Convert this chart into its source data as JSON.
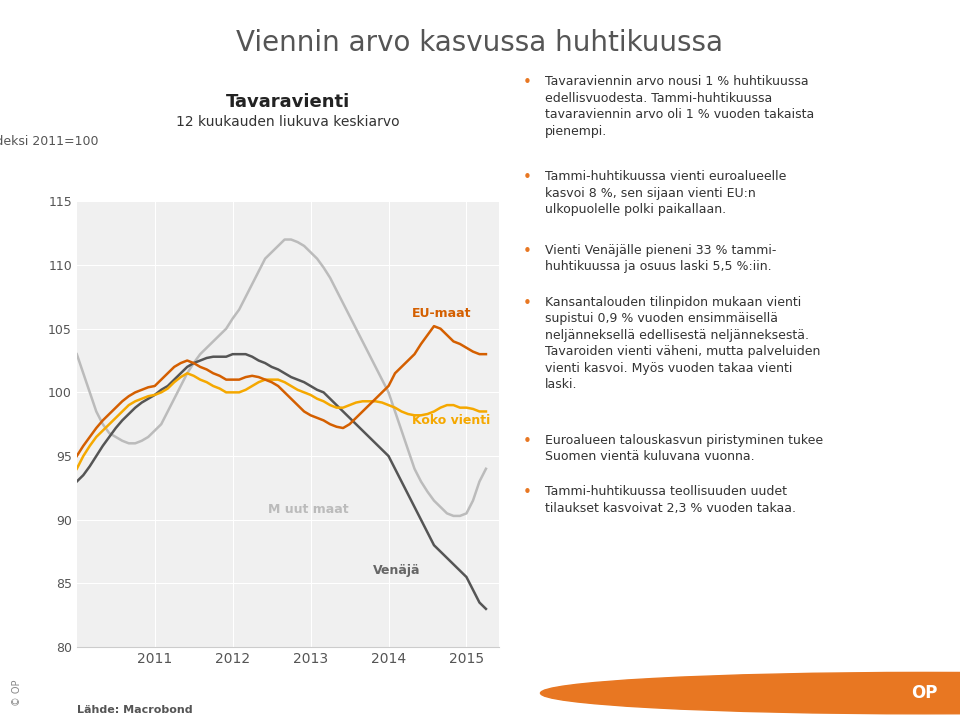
{
  "title": "Viennin arvo kasvussa huhtikuussa",
  "subtitle1": "Tavaravienti",
  "subtitle2": "12 kuukauden liukuva keskiarvo",
  "ylabel": "indeksi 2011=100",
  "ylim": [
    80,
    115
  ],
  "yticks": [
    80,
    85,
    90,
    95,
    100,
    105,
    110,
    115
  ],
  "source": "Lähde: Macrobond",
  "bg_color": "#ffffff",
  "plot_bg_color": "#f0f0f0",
  "title_color": "#555555",
  "text_color": "#555555",
  "colors": {
    "EU_maat": "#d45f00",
    "Koko_vienti": "#f5a800",
    "Venaja": "#555555",
    "Muut_maat": "#bbbbbb"
  },
  "bullet_color": "#e87722",
  "bullet_texts": [
    "Tavaraviennin arvo nousi 1 % huhtikuussa\nedellisvuodesta. Tammi-huhtikuussa\ntavaraviennin arvo oli 1 % vuoden takaista\npienempi.",
    "Tammi-huhtikuussa vienti euroalueelle\nkasvoi 8 %, sen sijaan vienti EU:n\nulkopuolelle polki paikallaan.",
    "Vienti Venäjälle pieneni 33 % tammi-\nhuhtikuussa ja osuus laski 5,5 %:iin.",
    "Kansantalouden tilinpidon mukaan vienti\nsupistui 0,9 % vuoden ensimmäisellä\nneljänneksellä edellisestä neljänneksestä.\nTavaroiden vienti väheni, mutta palveluiden\nvienti kasvoi. Myös vuoden takaa vienti\nlaski.",
    "Euroalueen talouskasvun piristyminen tukee\nSuomen vientä kuluvana vuonna.",
    "Tammi-huhtikuussa teollisuuden uudet\ntilaukset kasvoivat 2,3 % vuoden takaa."
  ]
}
